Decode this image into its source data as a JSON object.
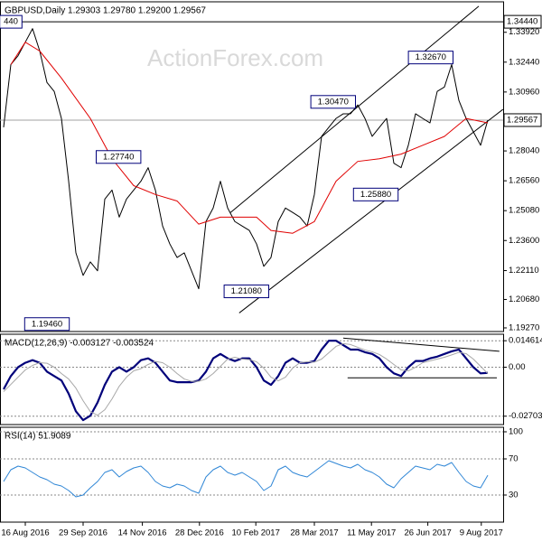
{
  "chart_data": [
    {
      "type": "line",
      "title": "GBPUSD,Daily  1.29303 1.29780 1.29200 1.29567",
      "watermark": "ActionForex.com",
      "xlim": [
        -0.5,
        69.125
      ],
      "ylim": [
        1.1909,
        1.3543
      ],
      "yticks": [
        {
          "value": 1.1927,
          "label": "1.19270"
        },
        {
          "value": 1.2068,
          "label": "1.20680"
        },
        {
          "value": 1.2211,
          "label": "1.22110"
        },
        {
          "value": 1.236,
          "label": "1.23600"
        },
        {
          "value": 1.2508,
          "label": "1.25080"
        },
        {
          "value": 1.2656,
          "label": "1.26560"
        },
        {
          "value": 1.2804,
          "label": "1.28040"
        },
        {
          "value": 1.3096,
          "label": "1.30960"
        },
        {
          "value": 1.3244,
          "label": "1.32440"
        },
        {
          "value": 1.3392,
          "label": "1.33920"
        }
      ],
      "hlines": [
        {
          "value": 1.3444,
          "label": "1.34440",
          "color": "#000000"
        },
        {
          "value": 1.29567,
          "label": "1.29567",
          "color": "#a0a0a0"
        }
      ],
      "series": [
        {
          "color": "#000000",
          "values": [
            1.2921,
            1.3232,
            1.3276,
            1.3343,
            1.341,
            1.3299,
            1.3143,
            1.3099,
            1.2965,
            1.2654,
            1.2299,
            1.2187,
            1.2254,
            1.221,
            1.2565,
            1.261,
            1.2476,
            1.2565,
            1.261,
            1.2654,
            1.2721,
            1.261,
            1.2432,
            1.2343,
            1.2276,
            1.2299,
            1.221,
            1.2121,
            1.2454,
            1.2521,
            1.2654,
            1.2521,
            1.2454,
            1.2432,
            1.241,
            1.2343,
            1.2232,
            1.2276,
            1.2454,
            1.2521,
            1.2499,
            1.2476,
            1.2432,
            1.2588,
            1.2876,
            1.2921,
            1.2965,
            1.2988,
            1.2988,
            1.3032,
            1.2965,
            1.2876,
            1.2921,
            1.2965,
            1.2743,
            1.2721,
            1.2832,
            1.2988,
            1.2965,
            1.2943,
            1.3099,
            1.3121,
            1.3232,
            1.3054,
            1.2965,
            1.2899,
            1.2832,
            1.29567
          ]
        },
        {
          "color": "#e00000",
          "x": [
            1,
            3,
            5,
            8,
            12,
            15,
            18,
            21,
            24,
            27,
            30,
            35,
            37,
            40,
            43,
            46,
            49,
            52,
            55,
            58,
            61,
            64,
            67
          ],
          "values": [
            1.3232,
            1.3343,
            1.3299,
            1.3165,
            1.2965,
            1.2765,
            1.2632,
            1.2588,
            1.2556,
            1.2441,
            1.2476,
            1.2476,
            1.241,
            1.2396,
            1.2454,
            1.2654,
            1.2752,
            1.2765,
            1.2788,
            1.2832,
            1.2876,
            1.2965,
            1.2943
          ]
        }
      ],
      "trendlines": [
        {
          "x": [
            31.4,
            65.75
          ],
          "values": [
            1.2499,
            1.3521
          ]
        },
        {
          "x": [
            32.6,
            69.1
          ],
          "values": [
            1.2001,
            1.301
          ]
        }
      ],
      "annotations": [
        {
          "label": "440",
          "value": 1.3444,
          "x": 1
        },
        {
          "label": "1.19460",
          "value": 1.1946,
          "x": 6
        },
        {
          "label": "1.27740",
          "value": 1.2774,
          "x": 15.9
        },
        {
          "label": "1.21080",
          "value": 1.2108,
          "x": 33.6
        },
        {
          "label": "1.30470",
          "value": 1.3047,
          "x": 45.6
        },
        {
          "label": "1.25880",
          "value": 1.2588,
          "x": 51.5
        },
        {
          "label": "1.32670",
          "value": 1.3267,
          "x": 59.1
        }
      ]
    },
    {
      "type": "line",
      "title": "MACD(12,26,9) -0.003127 -0.003524",
      "xlim": [
        -0.5,
        69.125
      ],
      "ylim": [
        -0.03166,
        0.0182
      ],
      "yticks": [
        -0.027031,
        {
          "value": 0,
          "label": "0.00"
        },
        0.014614
      ],
      "grid": true,
      "series": [
        {
          "color": "#00007a",
          "width": 2.2,
          "values": [
            -0.01218,
            -0.00487,
            0,
            0.00244,
            0.0039,
            0.00244,
            -0.00244,
            -0.00487,
            -0.00731,
            -0.01461,
            -0.02435,
            -0.02922,
            -0.02679,
            -0.01948,
            -0.00974,
            -0.00244,
            0,
            -0.00244,
            0,
            0.0039,
            0.00487,
            0.00244,
            -0.00244,
            -0.00731,
            -0.00828,
            -0.00828,
            -0.00828,
            -0.00731,
            -0.00244,
            0.00487,
            0.00731,
            0.00487,
            0.00341,
            0.00487,
            0.00487,
            0,
            -0.00731,
            -0.00974,
            -0.00487,
            0.00244,
            0.00487,
            0.00244,
            0.00244,
            0.00341,
            0.00974,
            0.01461,
            0.01461,
            0.01218,
            0.00974,
            0.00974,
            0.00828,
            0.00731,
            0.00487,
            0,
            -0.00341,
            -0.00487,
            0,
            0.00341,
            0.00341,
            0.00487,
            0.00585,
            0.00731,
            0.00877,
            0.00974,
            0.00487,
            0,
            -0.00341,
            -0.003127
          ]
        },
        {
          "color": "#a8a8a8",
          "width": 1,
          "values": [
            -0.0135,
            -0.0095,
            -0.0055,
            -0.0015,
            0.001,
            0.0025,
            0.0022,
            0.0,
            -0.0035,
            -0.0065,
            -0.0115,
            -0.0185,
            -0.0245,
            -0.0265,
            -0.0235,
            -0.0175,
            -0.0105,
            -0.0055,
            -0.002,
            -0.0008,
            0.0015,
            0.0032,
            0.0025,
            0.0,
            -0.0035,
            -0.0065,
            -0.0078,
            -0.0078,
            -0.0065,
            -0.0035,
            0.0005,
            0.0045,
            0.0055,
            0.0045,
            0.0042,
            0.003,
            -0.0005,
            -0.0055,
            -0.0075,
            -0.0055,
            -0.0005,
            0.0025,
            0.003,
            0.0028,
            0.0045,
            0.008,
            0.0115,
            0.013,
            0.0125,
            0.011,
            0.0095,
            0.0085,
            0.007,
            0.0045,
            0.0015,
            -0.0015,
            -0.002,
            0.0,
            0.0025,
            0.0035,
            0.0045,
            0.0055,
            0.0068,
            0.0082,
            0.0075,
            0.0045,
            0.0005,
            -0.003524
          ]
        }
      ],
      "trendlines": [
        {
          "x": [
            47,
            68.6
          ],
          "values": [
            0.01607,
            0.00877
          ]
        },
        {
          "x": [
            47.6,
            68.25
          ],
          "values": [
            -0.00585,
            -0.00585
          ]
        }
      ]
    },
    {
      "type": "line",
      "title": "RSI(14) 51.9089",
      "xlim": [
        -0.5,
        69.125
      ],
      "ylim": [
        0,
        105
      ],
      "yticks": [
        30,
        70,
        100
      ],
      "grid": true,
      "xticks": [
        {
          "value": 3,
          "label": "16 Aug 2016"
        },
        {
          "value": 11,
          "label": "29 Sep 2016"
        },
        {
          "value": 19.2,
          "label": "14 Nov 2016"
        },
        {
          "value": 27.1,
          "label": "28 Dec 2016"
        },
        {
          "value": 34.9,
          "label": "10 Feb 2017"
        },
        {
          "value": 43,
          "label": "28 Mar 2017"
        },
        {
          "value": 50.9,
          "label": "11 May 2017"
        },
        {
          "value": 58.7,
          "label": "26 Jun 2017"
        },
        {
          "value": 66.1,
          "label": "9 Aug 2017"
        }
      ],
      "series": [
        {
          "color": "#2f86d6",
          "width": 1,
          "values": [
            45,
            58,
            62,
            60,
            55,
            50,
            47,
            42,
            40,
            35,
            28,
            30,
            38,
            45,
            55,
            58,
            50,
            56,
            60,
            62,
            55,
            45,
            40,
            38,
            42,
            40,
            35,
            32,
            50,
            58,
            62,
            55,
            52,
            55,
            50,
            45,
            35,
            40,
            58,
            62,
            55,
            52,
            50,
            56,
            62,
            68,
            65,
            62,
            60,
            64,
            58,
            55,
            50,
            42,
            38,
            48,
            55,
            62,
            60,
            58,
            64,
            62,
            66,
            55,
            45,
            40,
            38,
            51.9089
          ]
        }
      ]
    }
  ]
}
